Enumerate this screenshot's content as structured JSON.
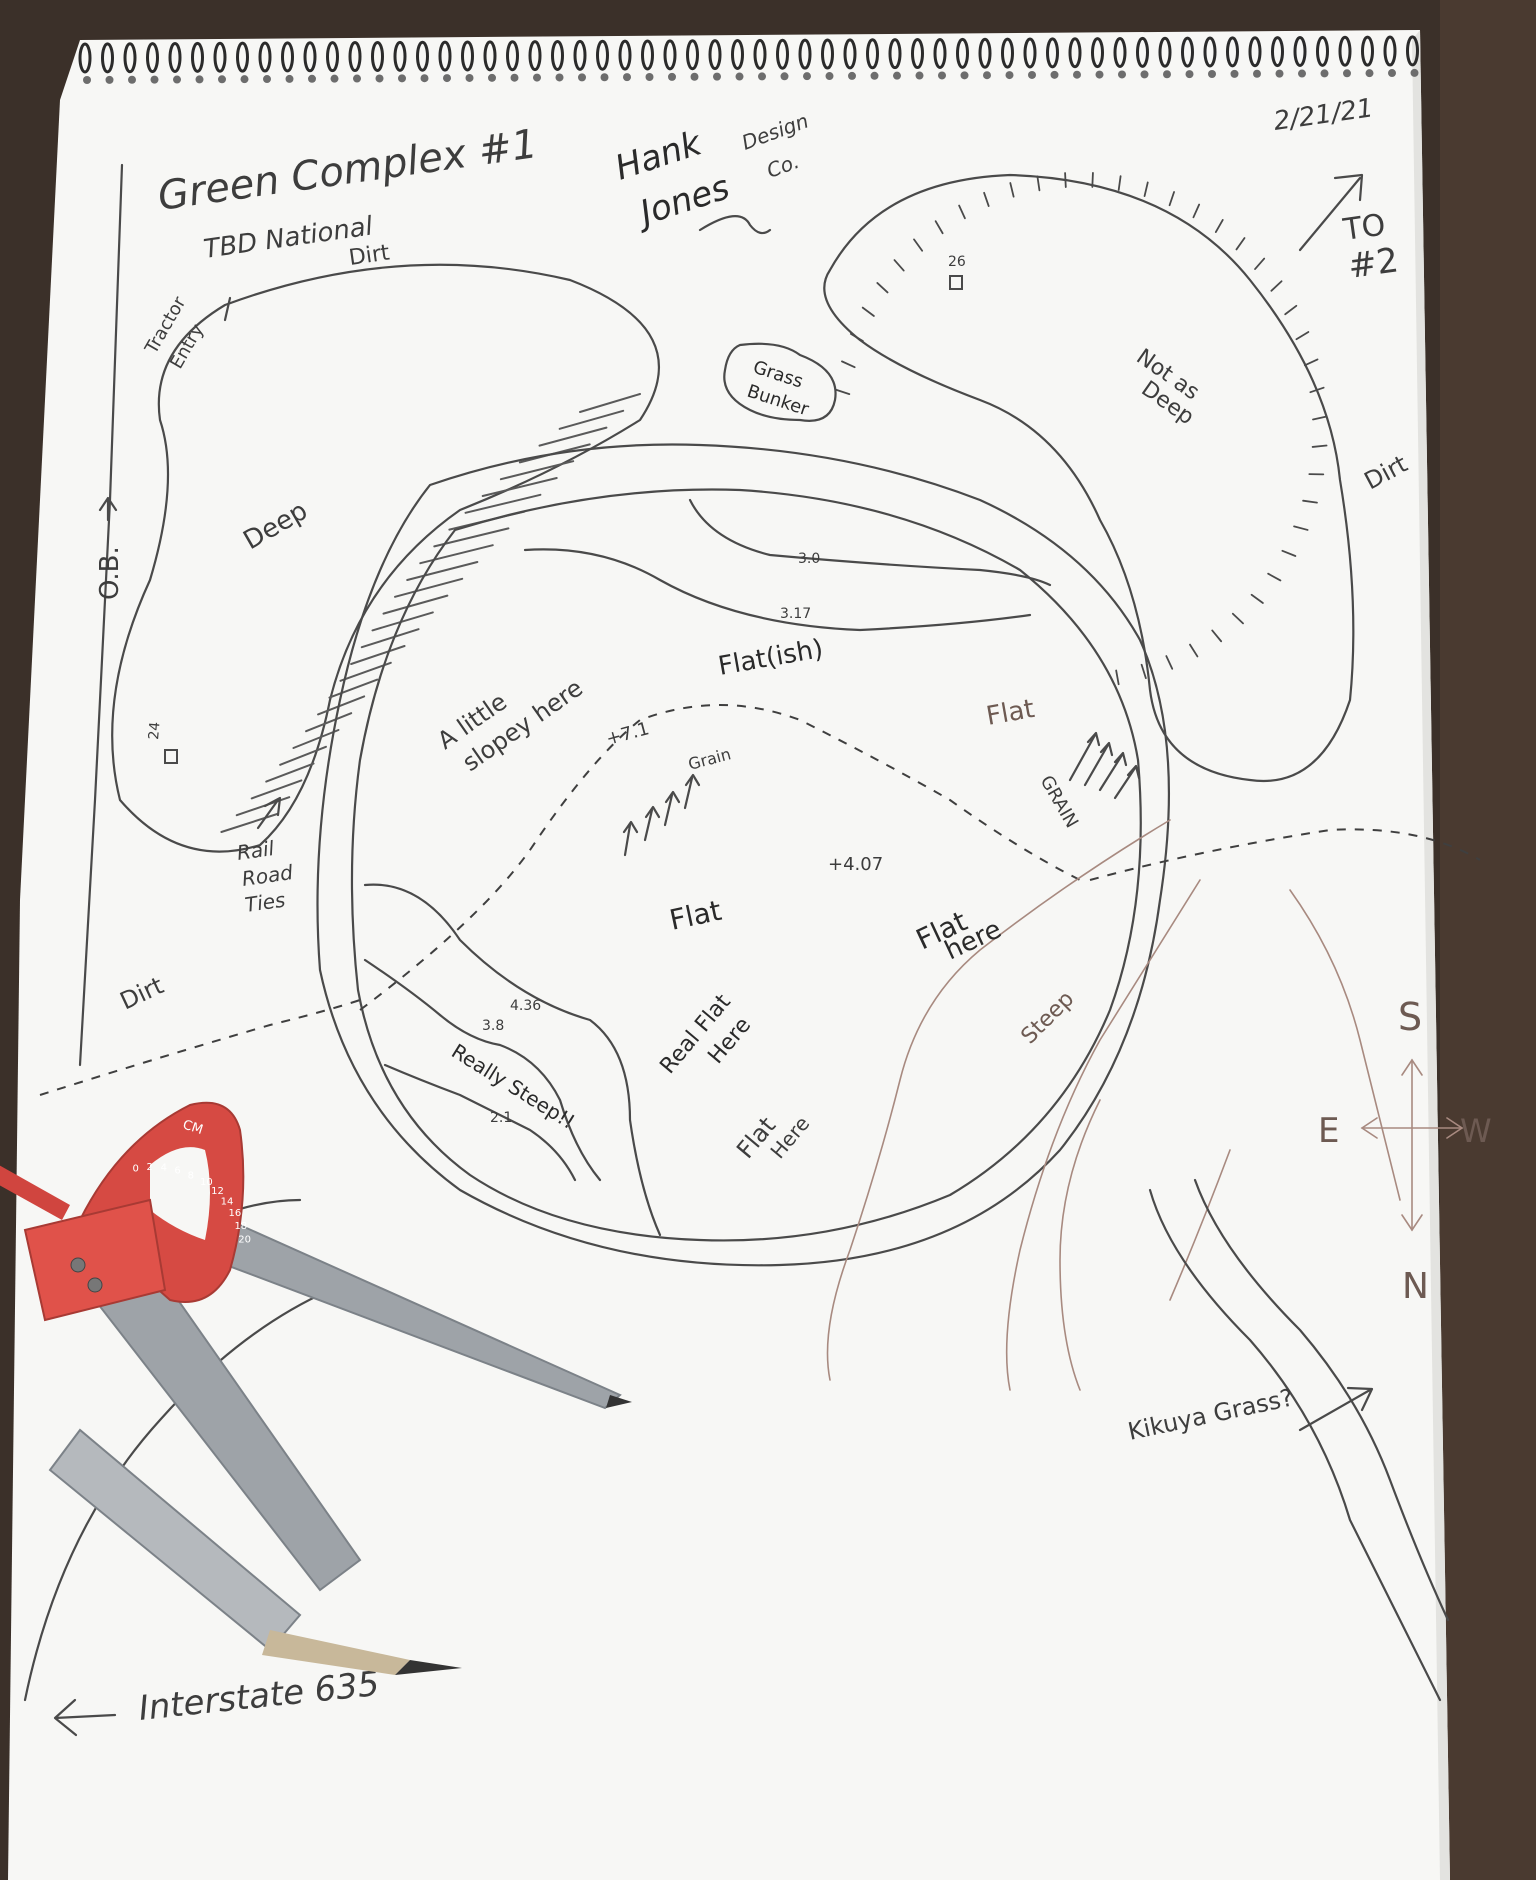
{
  "header": {
    "title": "Green Complex #1",
    "subtitle": "TBD National",
    "date": "2/21/21",
    "designer_line1": "Hank",
    "designer_line2": "Jones",
    "company_line1": "Design",
    "company_line2": "Co."
  },
  "direction": {
    "to_next_line1": "TO",
    "to_next_line2": "#2"
  },
  "bunkers": {
    "left_label": "Deep",
    "right_label_line1": "Not as",
    "right_label_line2": "Deep",
    "grass_bunker_line1": "Grass",
    "grass_bunker_line2": "Bunker",
    "marker_left": "24",
    "marker_right": "26"
  },
  "labels": {
    "tractor_line1": "Tractor",
    "tractor_line2": "Entry",
    "dirt": "Dirt",
    "ob": "O.B.",
    "rail_line1": "Rail",
    "rail_line2": "Road",
    "rail_line3": "Ties",
    "kikuya": "Kikuya Grass?",
    "interstate": "Interstate 635"
  },
  "green": {
    "contour_30": "3.0",
    "contour_317": "3.17",
    "flatish": "Flat(ish)",
    "sloped_line1": "A little",
    "sloped_line2": "slopey here",
    "flat_right": "Flat",
    "grain_right": "GRAIN",
    "grain_left": "Grain",
    "elev_71": "+7.1",
    "elev_407": "+4.07",
    "flat_center": "Flat",
    "flat_here_line1": "Flat",
    "flat_here_line2": "here",
    "contour_436": "4.36",
    "contour_38": "3.8",
    "contour_21": "2.1",
    "really_steep": "Really Steep!!",
    "real_flat_line1": "Real Flat",
    "real_flat_line2": "Here",
    "flat_here2_line1": "Flat",
    "flat_here2_line2": "Here",
    "steep": "Steep"
  },
  "compass": {
    "north": "N",
    "south": "S",
    "east": "E",
    "west": "W"
  },
  "tool": {
    "unit_label": "CM",
    "scale_numbers": [
      "0",
      "2",
      "4",
      "6",
      "8",
      "10",
      "12",
      "14",
      "16",
      "18",
      "20"
    ]
  }
}
